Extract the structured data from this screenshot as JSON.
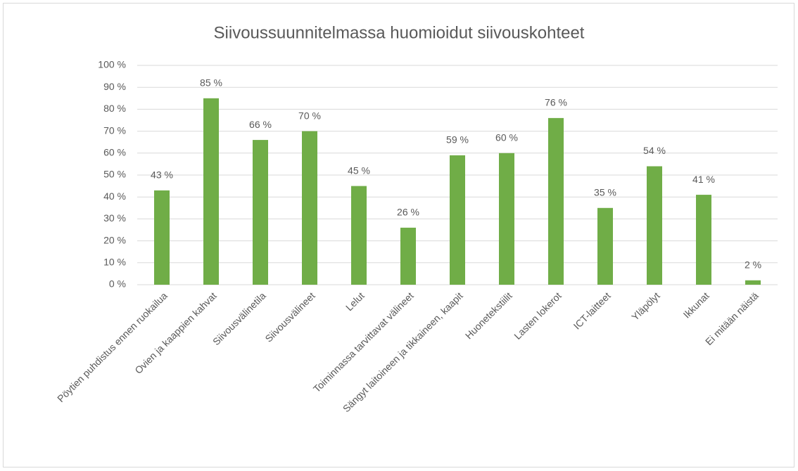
{
  "chart_data": {
    "type": "bar",
    "title": "Siivoussuunnitelmassa huomioidut siivouskohteet",
    "categories": [
      "Pöytien puhdistus ennen ruokailua",
      "Ovien ja kaappien kahvat",
      "Siivousvälinetila",
      "Siivousvälineet",
      "Lelut",
      "Toiminnassa tarvittavat välineet",
      "Sängyt laitoineen ja tikkaineen, kaapit",
      "Huonetekstiilit",
      "Lasten lokerot",
      "ICT-laitteet",
      "Yläpölyt",
      "Ikkunat",
      "Ei mitään näistä"
    ],
    "values": [
      43,
      85,
      66,
      70,
      45,
      26,
      59,
      60,
      76,
      35,
      54,
      41,
      2
    ],
    "value_labels": [
      "43 %",
      "85 %",
      "66 %",
      "70 %",
      "45 %",
      "26 %",
      "59 %",
      "60 %",
      "76 %",
      "35 %",
      "54 %",
      "41 %",
      "2 %"
    ],
    "color": "#70ad47",
    "ylim": [
      0,
      100
    ],
    "yticks": [
      {
        "value": 0,
        "label": "0 %"
      },
      {
        "value": 10,
        "label": "10 %"
      },
      {
        "value": 20,
        "label": "20 %"
      },
      {
        "value": 30,
        "label": "30 %"
      },
      {
        "value": 40,
        "label": "40 %"
      },
      {
        "value": 50,
        "label": "50 %"
      },
      {
        "value": 60,
        "label": "60 %"
      },
      {
        "value": 70,
        "label": "70 %"
      },
      {
        "value": 80,
        "label": "80 %"
      },
      {
        "value": 90,
        "label": "90 %"
      },
      {
        "value": 100,
        "label": "100 %"
      }
    ],
    "grid": true
  }
}
